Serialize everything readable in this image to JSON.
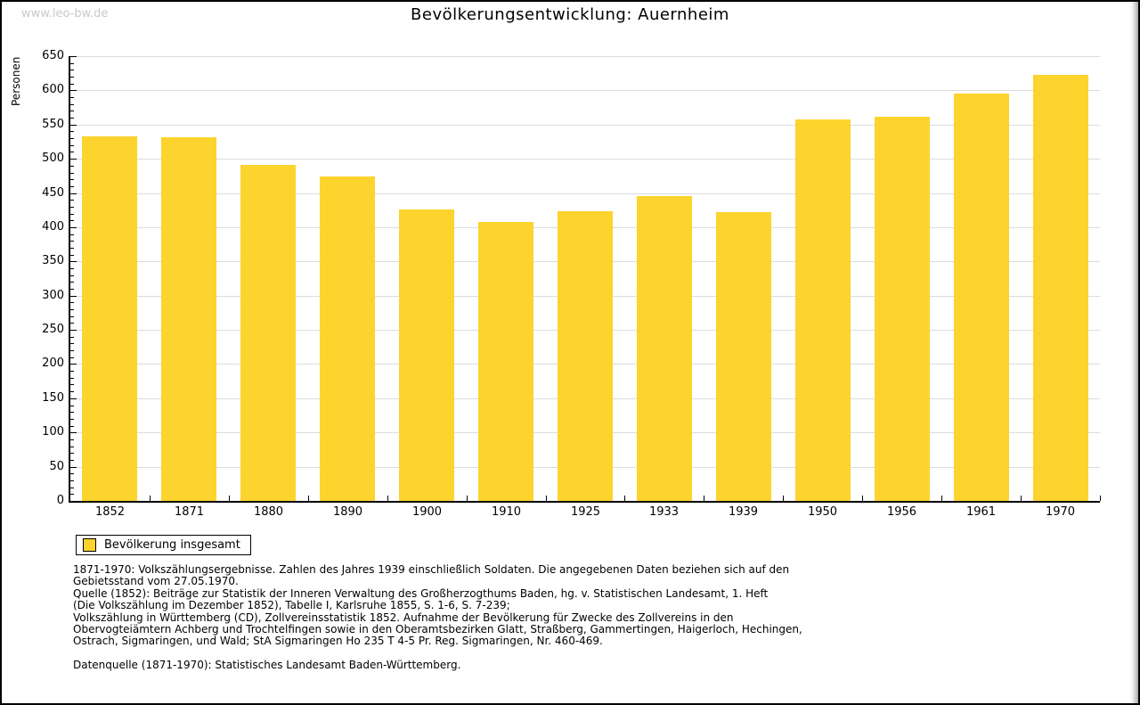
{
  "watermark": "www.leo-bw.de",
  "chart_data": {
    "type": "bar",
    "title": "Bevölkerungsentwicklung: Auernheim",
    "ylabel": "Personen",
    "xlabel": "",
    "categories": [
      "1852",
      "1871",
      "1880",
      "1890",
      "1900",
      "1910",
      "1925",
      "1933",
      "1939",
      "1950",
      "1956",
      "1961",
      "1970"
    ],
    "values": [
      533,
      531,
      491,
      474,
      426,
      408,
      423,
      446,
      422,
      557,
      561,
      595,
      622
    ],
    "ylim": [
      0,
      650
    ],
    "ytick_step": 50,
    "y_minor_tick_step": 10,
    "grid": true,
    "legend": [
      "Bevölkerung insgesamt"
    ],
    "legend_position": "bottom-left"
  },
  "colors": {
    "bar": "#FDD32D",
    "grid": "#DCDCDC",
    "axis": "#000000",
    "watermark": "#C9C9C9",
    "background": "#FFFFFF"
  },
  "footnotes": {
    "lines": [
      "1871-1970: Volkszählungsergebnisse. Zahlen des Jahres 1939 einschließlich Soldaten. Die angegebenen Daten beziehen sich auf den",
      "Gebietsstand vom 27.05.1970.",
      "Quelle (1852): Beiträge zur Statistik der Inneren Verwaltung des Großherzogthums Baden, hg. v. Statistischen Landesamt, 1. Heft",
      "(Die Volkszählung im Dezember 1852), Tabelle I, Karlsruhe 1855, S. 1-6, S. 7-239;",
      "Volkszählung in Württemberg (CD), Zollvereinsstatistik 1852. Aufnahme der Bevölkerung für Zwecke des Zollvereins in den",
      "Obervogteiämtern Achberg und Trochtelfingen sowie in den Oberamtsbezirken Glatt, Straßberg, Gammertingen, Haigerloch, Hechingen,",
      "Ostrach, Sigmaringen, und Wald; StA Sigmaringen Ho 235 T 4-5 Pr. Reg. Sigmaringen, Nr. 460-469."
    ],
    "datasource": "Datenquelle (1871-1970): Statistisches Landesamt Baden-Württemberg."
  }
}
